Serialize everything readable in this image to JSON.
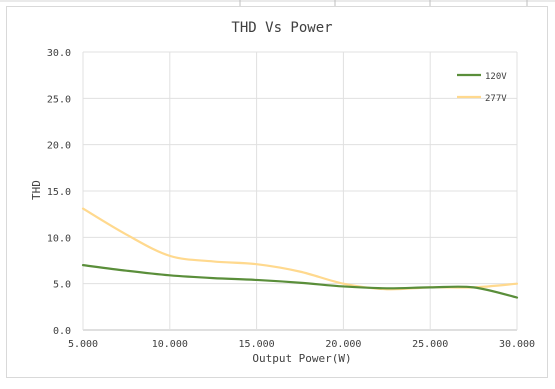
{
  "chart_data": {
    "type": "line",
    "title": "THD Vs Power",
    "xlabel": "Output Power(W)",
    "ylabel": "THD",
    "xlim": [
      5,
      30
    ],
    "ylim": [
      0,
      30
    ],
    "x_ticks": [
      5,
      10,
      15,
      20,
      25,
      30
    ],
    "x_tick_labels": [
      "5.000",
      "10.000",
      "15.000",
      "20.000",
      "25.000",
      "30.000"
    ],
    "y_ticks": [
      0,
      5,
      10,
      15,
      20,
      25,
      30
    ],
    "y_tick_labels": [
      "0.0",
      "5.0",
      "10.0",
      "15.0",
      "20.0",
      "25.0",
      "30.0"
    ],
    "grid": true,
    "legend_position": "top-right",
    "series": [
      {
        "name": "120V",
        "color": "#5a8e3a",
        "x": [
          5,
          7.5,
          10,
          12.5,
          15,
          17.5,
          20,
          22.5,
          25,
          27.5,
          30
        ],
        "y": [
          7.0,
          6.4,
          5.9,
          5.6,
          5.4,
          5.1,
          4.7,
          4.5,
          4.6,
          4.6,
          3.5
        ]
      },
      {
        "name": "277V",
        "color": "#ffd98e",
        "x": [
          5,
          7.5,
          10,
          12.5,
          15,
          17.5,
          20,
          22.5,
          25,
          27.5,
          30
        ],
        "y": [
          13.1,
          10.3,
          8.0,
          7.4,
          7.1,
          6.3,
          5.0,
          4.4,
          4.6,
          4.6,
          5.0
        ]
      }
    ]
  }
}
